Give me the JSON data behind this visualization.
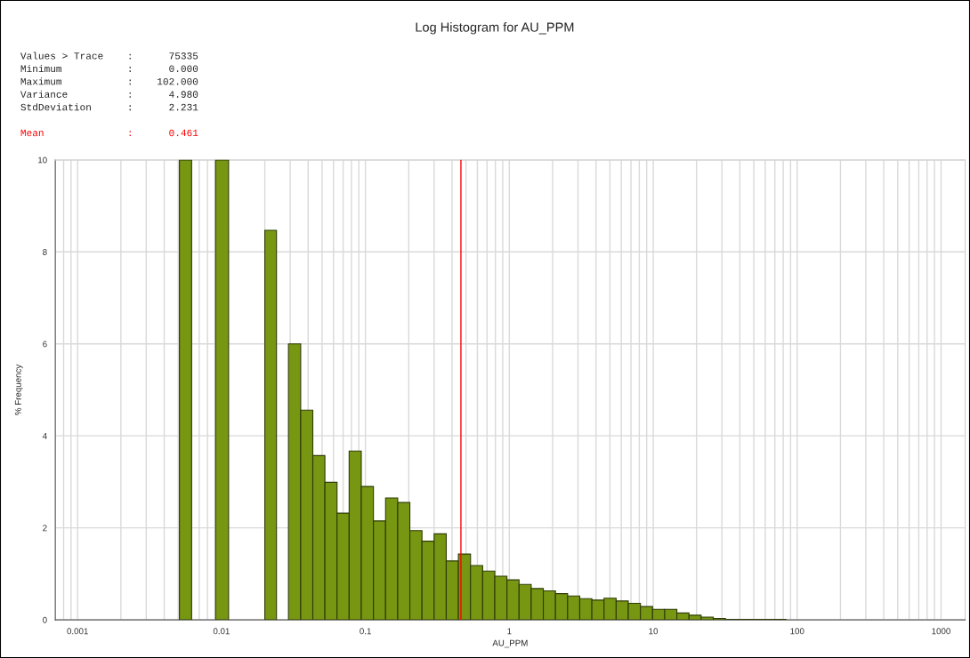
{
  "chart_data": {
    "type": "histogram",
    "title": "Log Histogram for AU_PPM",
    "xlabel": "AU_PPM",
    "ylabel": "% Frequency",
    "annotations": [
      "Values > Trace    :      75335",
      "Minimum           :      0.000",
      "Maximum           :    102.000",
      "Variance          :      4.980",
      "StdDeviation      :      2.231"
    ],
    "bins": [
      0.0051,
      0.0062,
      0.0091,
      0.0112,
      0.02,
      0.0241,
      0.0292,
      0.0355,
      0.0431,
      0.0523,
      0.0635,
      0.0771,
      0.0936,
      0.1137,
      0.1381,
      0.1677,
      0.2036,
      0.2472,
      0.3002,
      0.3645,
      0.4427,
      0.5375,
      0.6527,
      0.7926,
      0.9625,
      1.169,
      1.419,
      1.723,
      2.093,
      2.541,
      3.086,
      3.747,
      4.55,
      5.526,
      6.71,
      8.148,
      9.894,
      12.01,
      14.59,
      17.72,
      21.51,
      26.12,
      31.72,
      38.52,
      46.78,
      56.8,
      68.98,
      83.76
    ],
    "values": [
      10,
      null,
      10,
      null,
      8.47,
      null,
      6.0,
      4.56,
      3.57,
      2.99,
      2.32,
      3.67,
      2.9,
      2.15,
      2.65,
      2.55,
      1.94,
      1.71,
      1.87,
      1.28,
      1.43,
      1.18,
      1.06,
      0.95,
      0.87,
      0.77,
      0.68,
      0.63,
      0.57,
      0.52,
      0.46,
      0.43,
      0.47,
      0.41,
      0.36,
      0.29,
      0.23,
      0.23,
      0.15,
      0.1,
      0.06,
      0.03,
      0.01,
      0.01,
      0.01,
      0.01,
      0.01
    ],
    "color": "#779612",
    "log": "x",
    "xlim": [
      0.0007,
      1470
    ],
    "xticks": [
      0.001,
      0.01,
      0.1,
      1,
      10,
      100,
      1000
    ],
    "ylim": [
      0,
      10
    ],
    "yticks": [
      0,
      2,
      4,
      6,
      8,
      10
    ],
    "ref_lines": [
      {
        "axis": "x",
        "value": 0.461,
        "label": "Mean              :      0.461",
        "color": "#ff0000"
      }
    ],
    "grid": true
  }
}
